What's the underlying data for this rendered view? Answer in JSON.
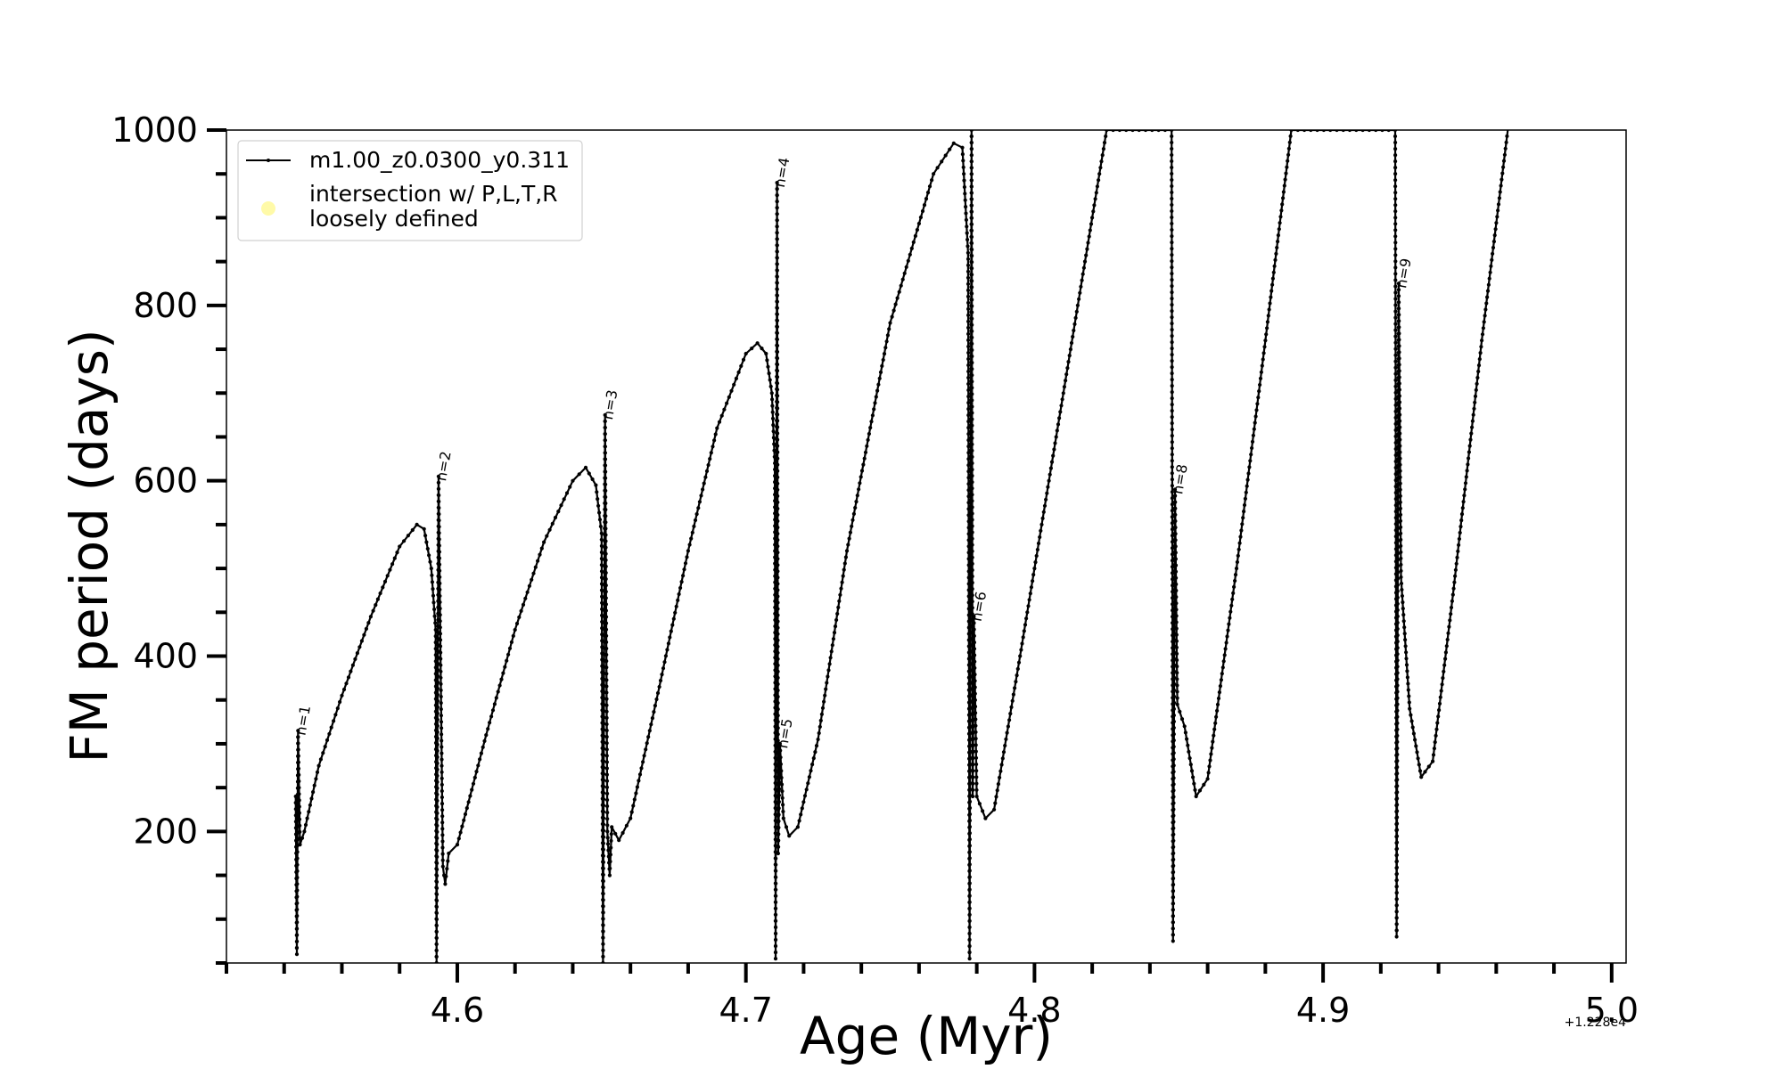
{
  "chart_data": {
    "type": "line",
    "xlabel": "Age (Myr)",
    "ylabel": "FM period (days)",
    "x_offset_text": "+1.228e4",
    "xlim": [
      4.52,
      5.005
    ],
    "ylim": [
      50,
      1000
    ],
    "x_ticks": [
      4.6,
      4.7,
      4.8,
      4.9,
      5.0
    ],
    "x_tick_labels": [
      "4.6",
      "4.7",
      "4.8",
      "4.9",
      "5.0"
    ],
    "y_ticks": [
      200,
      400,
      600,
      800,
      1000
    ],
    "y_tick_labels": [
      "200",
      "400",
      "600",
      "800",
      "1000"
    ],
    "grid": false,
    "legend_position": "top-left",
    "series": [
      {
        "name": "m1.00_z0.0300_y0.311",
        "color": "#000000",
        "marker": "dot",
        "points": [
          [
            4.544,
            240
          ],
          [
            4.5444,
            60
          ],
          [
            4.5448,
            315
          ],
          [
            4.5455,
            185
          ],
          [
            4.547,
            200
          ],
          [
            4.552,
            275
          ],
          [
            4.56,
            355
          ],
          [
            4.57,
            445
          ],
          [
            4.58,
            525
          ],
          [
            4.586,
            550
          ],
          [
            4.5885,
            545
          ],
          [
            4.591,
            500
          ],
          [
            4.5925,
            430
          ],
          [
            4.5928,
            50
          ],
          [
            4.5935,
            605
          ],
          [
            4.595,
            160
          ],
          [
            4.5958,
            140
          ],
          [
            4.597,
            175
          ],
          [
            4.6,
            185
          ],
          [
            4.61,
            310
          ],
          [
            4.62,
            430
          ],
          [
            4.63,
            530
          ],
          [
            4.64,
            600
          ],
          [
            4.6445,
            615
          ],
          [
            4.648,
            595
          ],
          [
            4.65,
            540
          ],
          [
            4.6505,
            50
          ],
          [
            4.6512,
            675
          ],
          [
            4.652,
            200
          ],
          [
            4.6528,
            150
          ],
          [
            4.6535,
            205
          ],
          [
            4.656,
            190
          ],
          [
            4.66,
            215
          ],
          [
            4.67,
            365
          ],
          [
            4.68,
            520
          ],
          [
            4.69,
            660
          ],
          [
            4.7,
            745
          ],
          [
            4.704,
            757
          ],
          [
            4.707,
            745
          ],
          [
            4.709,
            700
          ],
          [
            4.71,
            620
          ],
          [
            4.7103,
            55
          ],
          [
            4.7108,
            940
          ],
          [
            4.7112,
            175
          ],
          [
            4.7118,
            300
          ],
          [
            4.713,
            215
          ],
          [
            4.715,
            195
          ],
          [
            4.718,
            205
          ],
          [
            4.725,
            305
          ],
          [
            4.735,
            520
          ],
          [
            4.75,
            780
          ],
          [
            4.765,
            950
          ],
          [
            4.772,
            985
          ],
          [
            4.775,
            980
          ],
          [
            4.777,
            860
          ],
          [
            4.7775,
            55
          ],
          [
            4.7782,
            1000
          ],
          [
            4.7786,
            240
          ],
          [
            4.779,
            445
          ],
          [
            4.78,
            240
          ],
          [
            4.783,
            215
          ],
          [
            4.786,
            225
          ],
          [
            4.795,
            400
          ],
          [
            4.81,
            700
          ],
          [
            4.825,
            1000
          ],
          [
            4.8475,
            1000
          ],
          [
            4.848,
            75
          ],
          [
            4.8487,
            590
          ],
          [
            4.8495,
            345
          ],
          [
            4.852,
            320
          ],
          [
            4.856,
            240
          ],
          [
            4.86,
            260
          ],
          [
            4.87,
            500
          ],
          [
            4.88,
            760
          ],
          [
            4.889,
            1000
          ],
          [
            4.925,
            1000
          ],
          [
            4.9255,
            80
          ],
          [
            4.9262,
            825
          ],
          [
            4.927,
            490
          ],
          [
            4.93,
            340
          ],
          [
            4.934,
            262
          ],
          [
            4.938,
            280
          ],
          [
            4.945,
            470
          ],
          [
            4.955,
            760
          ],
          [
            4.964,
            1000
          ]
        ]
      }
    ],
    "legend": {
      "line_entry": "m1.00_z0.0300_y0.311",
      "marker_entry_line1": "intersection w/ P,L,T,R",
      "marker_entry_line2": "loosely defined",
      "marker_color": "#fffaa8"
    },
    "annotations": [
      {
        "text": "n=1",
        "x": 4.5448,
        "y": 315
      },
      {
        "text": "n=2",
        "x": 4.5935,
        "y": 605
      },
      {
        "text": "n=3",
        "x": 4.6512,
        "y": 675
      },
      {
        "text": "n=4",
        "x": 4.7108,
        "y": 940
      },
      {
        "text": "n=5",
        "x": 4.7118,
        "y": 300
      },
      {
        "text": "n=6",
        "x": 4.779,
        "y": 445
      },
      {
        "text": "n=8",
        "x": 4.8487,
        "y": 590
      },
      {
        "text": "n=9",
        "x": 4.9262,
        "y": 825
      }
    ]
  }
}
